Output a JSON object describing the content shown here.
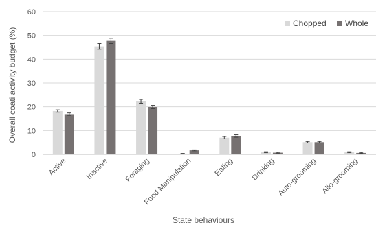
{
  "chart_data": {
    "type": "bar",
    "xlabel": "State behaviours",
    "ylabel": "Overall coati activity budget  (%)",
    "ylim": [
      0,
      60
    ],
    "yticks": [
      0,
      10,
      20,
      30,
      40,
      50,
      60
    ],
    "grid": true,
    "legend_position": "top-right",
    "categories": [
      "Active",
      "Inactive",
      "Foraging",
      "Food Manipulation",
      "Eating",
      "Drinking",
      "Auto-grooming",
      "Allo-grooming"
    ],
    "series": [
      {
        "name": "Chopped",
        "color": "#d9d9d9",
        "values": [
          18.2,
          45.4,
          22.3,
          0.3,
          7.0,
          0.9,
          5.1,
          0.9
        ],
        "errors": [
          0.5,
          1.2,
          0.8,
          0.1,
          0.5,
          0.2,
          0.3,
          0.2
        ]
      },
      {
        "name": "Whole",
        "color": "#767171",
        "values": [
          16.9,
          47.7,
          19.9,
          1.7,
          7.7,
          0.7,
          5.1,
          0.6
        ],
        "errors": [
          0.5,
          1.1,
          0.7,
          0.2,
          0.5,
          0.2,
          0.3,
          0.2
        ]
      }
    ]
  }
}
